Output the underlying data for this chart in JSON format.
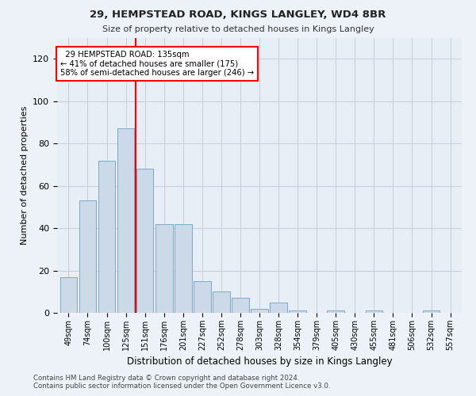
{
  "title1": "29, HEMPSTEAD ROAD, KINGS LANGLEY, WD4 8BR",
  "title2": "Size of property relative to detached houses in Kings Langley",
  "xlabel": "Distribution of detached houses by size in Kings Langley",
  "ylabel": "Number of detached properties",
  "footer": "Contains HM Land Registry data © Crown copyright and database right 2024.\nContains public sector information licensed under the Open Government Licence v3.0.",
  "categories": [
    "49sqm",
    "74sqm",
    "100sqm",
    "125sqm",
    "151sqm",
    "176sqm",
    "201sqm",
    "227sqm",
    "252sqm",
    "278sqm",
    "303sqm",
    "328sqm",
    "354sqm",
    "379sqm",
    "405sqm",
    "430sqm",
    "455sqm",
    "481sqm",
    "506sqm",
    "532sqm",
    "557sqm"
  ],
  "values": [
    17,
    53,
    72,
    87,
    68,
    42,
    42,
    15,
    10,
    7,
    2,
    5,
    1,
    0,
    1,
    0,
    1,
    0,
    0,
    1,
    0
  ],
  "bar_color": "#ccd9e8",
  "bar_edge_color": "#7aaac8",
  "vline_x": 3.5,
  "vline_color": "red",
  "annotation_text": "  29 HEMPSTEAD ROAD: 135sqm\n← 41% of detached houses are smaller (175)\n58% of semi-detached houses are larger (246) →",
  "annotation_box_color": "white",
  "annotation_box_edge": "red",
  "ylim": [
    0,
    130
  ],
  "yticks": [
    0,
    20,
    40,
    60,
    80,
    100,
    120
  ],
  "bg_color": "#edf2f8",
  "plot_bg_color": "#e8eef5",
  "grid_color": "#c5cedd"
}
